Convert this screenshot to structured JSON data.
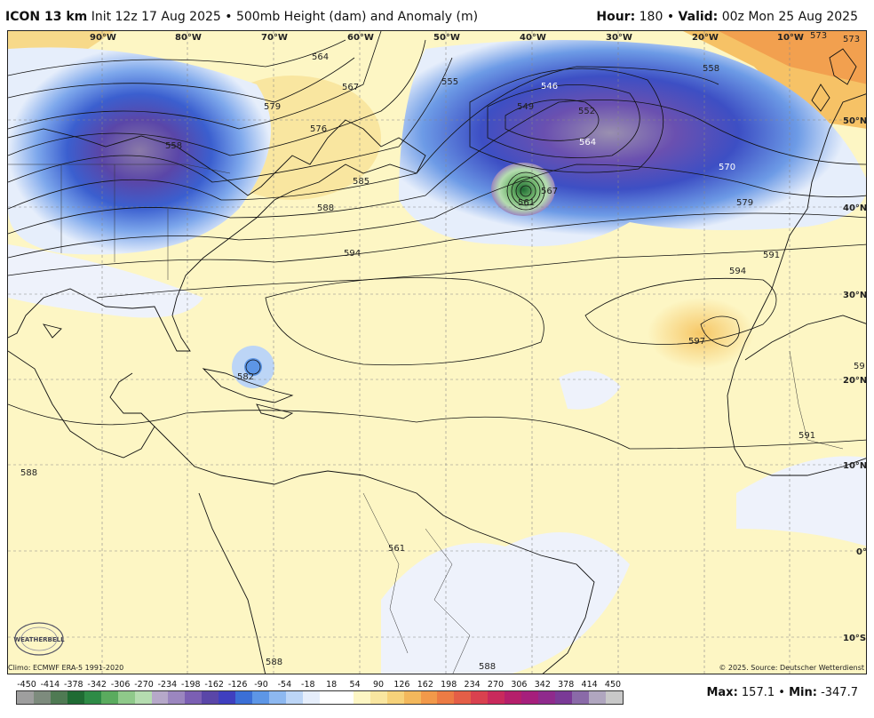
{
  "header": {
    "model": "ICON 13 km",
    "init": "Init 12z 17 Aug 2025",
    "sep": "•",
    "product": "500mb Height (dam) and Anomaly (m)",
    "hour_label": "Hour:",
    "hour_value": "180",
    "valid_label": "Valid:",
    "valid_value": "00z Mon 25 Aug 2025"
  },
  "map": {
    "longitudes": [
      "90°W",
      "80°W",
      "70°W",
      "60°W",
      "50°W",
      "40°W",
      "30°W",
      "20°W",
      "10°W"
    ],
    "latitudes": [
      "50°N",
      "40°N",
      "30°N",
      "20°N",
      "10°N",
      "0°",
      "10°S"
    ],
    "contour_labels": [
      "546",
      "549",
      "552",
      "555",
      "558",
      "558",
      "561",
      "564",
      "564",
      "567",
      "567",
      "570",
      "573",
      "573",
      "576",
      "579",
      "579",
      "585",
      "588",
      "588",
      "588",
      "588",
      "591",
      "591",
      "594",
      "594",
      "597",
      "59",
      "582",
      "561"
    ],
    "centers": [
      "546",
      "561"
    ]
  },
  "footer": {
    "climo": "Climo: ECMWF ERA-5 1991-2020",
    "source": "© 2025. Source: Deutscher Wetterdienst",
    "logo_text": "WEATHERBELL"
  },
  "colorbar": {
    "ticks": [
      "-450",
      "-414",
      "-378",
      "-342",
      "-306",
      "-270",
      "-234",
      "-198",
      "-162",
      "-126",
      "-90",
      "-54",
      "-18",
      "18",
      "54",
      "90",
      "126",
      "162",
      "198",
      "234",
      "270",
      "306",
      "342",
      "378",
      "414",
      "450"
    ],
    "colors": [
      "#9e9e9e",
      "#7d8b7d",
      "#4f7a53",
      "#1f6b33",
      "#2e8b46",
      "#5aab5e",
      "#8fc98a",
      "#b5dcb0",
      "#b6a8c9",
      "#9b86bf",
      "#7b5fb3",
      "#5a46a8",
      "#3f3fbf",
      "#3b6fd6",
      "#5d96e6",
      "#8db8f0",
      "#bcd5f6",
      "#e6eefb",
      "#ffffff",
      "#ffffff",
      "#fdf6c4",
      "#f9e6a0",
      "#f6d27a",
      "#f3b85c",
      "#f2994a",
      "#ec7b44",
      "#e45e47",
      "#d9414f",
      "#c92a5c",
      "#b51f6b",
      "#a61f7c",
      "#8f2a8c",
      "#7a3a96",
      "#8a6aa8",
      "#b0a6bf",
      "#c8c8c8"
    ],
    "max_label": "Max:",
    "max_value": "157.1",
    "sep": "•",
    "min_label": "Min:",
    "min_value": "-347.7"
  }
}
